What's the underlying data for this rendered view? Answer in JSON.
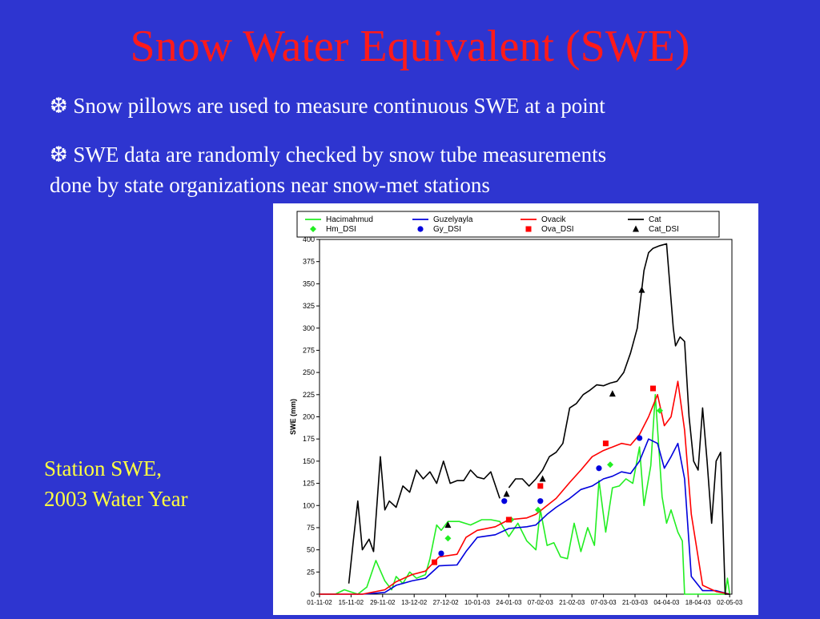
{
  "slide": {
    "title": "Snow Water Equivalent (SWE)",
    "bullet_1": "Snow pillows are used to measure continuous SWE at a point",
    "bullet_2_line_1": "SWE data are randomly checked by snow tube measurements",
    "bullet_2_line_2": "done by state organizations near snow-met stations",
    "bullet_icon": "snowflake-icon",
    "side_caption_line_1": "Station SWE,",
    "side_caption_line_2": "2003 Water Year",
    "colors": {
      "background": "#2e35d0",
      "title": "#ff1a1a",
      "bullet_text": "#ffffff",
      "side_caption": "#ffff40"
    }
  },
  "chart_data": {
    "type": "line",
    "title": "",
    "xlabel": "",
    "ylabel": "SWE (mm)",
    "ylim": [
      0,
      400
    ],
    "yticks": [
      0,
      25,
      50,
      75,
      100,
      125,
      150,
      175,
      200,
      225,
      250,
      275,
      300,
      325,
      350,
      375,
      400
    ],
    "xlim": [
      "2002-11-01",
      "2003-05-03"
    ],
    "xtick_labels": [
      "01-11-02",
      "15-11-02",
      "29-11-02",
      "13-12-02",
      "27-12-02",
      "10-01-03",
      "24-01-03",
      "07-02-03",
      "21-02-03",
      "07-03-03",
      "21-03-03",
      "04-04-03",
      "18-04-03",
      "02-05-03"
    ],
    "xtick_dates": [
      "2002-11-01",
      "2002-11-15",
      "2002-11-29",
      "2002-12-13",
      "2002-12-27",
      "2003-01-10",
      "2003-01-24",
      "2003-02-07",
      "2003-02-21",
      "2003-03-07",
      "2003-03-21",
      "2003-04-04",
      "2003-04-18",
      "2003-05-02"
    ],
    "grid": false,
    "legend_position": "top",
    "series": [
      {
        "name": "Hacimahmud",
        "color": "#22ee22",
        "x": [
          "2002-11-01",
          "2002-11-08",
          "2002-11-12",
          "2002-11-18",
          "2002-11-22",
          "2002-11-26",
          "2002-11-30",
          "2002-12-03",
          "2002-12-05",
          "2002-12-08",
          "2002-12-11",
          "2002-12-14",
          "2002-12-18",
          "2002-12-20",
          "2002-12-23",
          "2002-12-25",
          "2002-12-28",
          "2003-01-02",
          "2003-01-07",
          "2003-01-12",
          "2003-01-16",
          "2003-01-20",
          "2003-01-24",
          "2003-01-28",
          "2003-02-01",
          "2003-02-05",
          "2003-02-07",
          "2003-02-10",
          "2003-02-13",
          "2003-02-16",
          "2003-02-19",
          "2003-02-22",
          "2003-02-25",
          "2003-02-28",
          "2003-03-03",
          "2003-03-05",
          "2003-03-08",
          "2003-03-11",
          "2003-03-14",
          "2003-03-17",
          "2003-03-20",
          "2003-03-23",
          "2003-03-25",
          "2003-03-28",
          "2003-03-30",
          "2003-04-02",
          "2003-04-04",
          "2003-04-06",
          "2003-04-09",
          "2003-04-11",
          "2003-04-12",
          "2003-04-30",
          "2003-05-01",
          "2003-05-02"
        ],
        "y": [
          0,
          0,
          5,
          0,
          8,
          38,
          15,
          5,
          20,
          12,
          25,
          18,
          22,
          40,
          78,
          72,
          82,
          82,
          78,
          84,
          84,
          82,
          65,
          80,
          60,
          50,
          95,
          55,
          58,
          42,
          40,
          80,
          48,
          75,
          55,
          128,
          70,
          120,
          122,
          130,
          125,
          166,
          100,
          145,
          225,
          110,
          80,
          95,
          70,
          60,
          0,
          0,
          18,
          0
        ]
      },
      {
        "name": "Guzelyayla",
        "color": "#0000dd",
        "x": [
          "2002-11-01",
          "2002-11-20",
          "2002-11-30",
          "2002-12-05",
          "2002-12-12",
          "2002-12-18",
          "2002-12-24",
          "2003-01-01",
          "2003-01-05",
          "2003-01-10",
          "2003-01-18",
          "2003-01-24",
          "2003-02-01",
          "2003-02-05",
          "2003-02-10",
          "2003-02-14",
          "2003-02-20",
          "2003-02-25",
          "2003-03-02",
          "2003-03-07",
          "2003-03-11",
          "2003-03-15",
          "2003-03-19",
          "2003-03-23",
          "2003-03-27",
          "2003-03-31",
          "2003-04-03",
          "2003-04-06",
          "2003-04-09",
          "2003-04-12",
          "2003-04-15",
          "2003-04-20",
          "2003-04-26",
          "2003-05-02"
        ],
        "y": [
          0,
          0,
          2,
          10,
          15,
          18,
          32,
          33,
          48,
          64,
          67,
          74,
          76,
          78,
          90,
          98,
          108,
          118,
          122,
          130,
          133,
          138,
          136,
          150,
          175,
          170,
          142,
          155,
          170,
          130,
          20,
          4,
          4,
          0
        ]
      },
      {
        "name": "Ovacik",
        "color": "#ff0000",
        "x": [
          "2002-11-01",
          "2002-11-20",
          "2002-11-30",
          "2002-12-05",
          "2002-12-12",
          "2002-12-18",
          "2002-12-24",
          "2003-01-01",
          "2003-01-05",
          "2003-01-10",
          "2003-01-18",
          "2003-01-24",
          "2003-02-01",
          "2003-02-05",
          "2003-02-10",
          "2003-02-14",
          "2003-02-20",
          "2003-02-25",
          "2003-03-02",
          "2003-03-07",
          "2003-03-11",
          "2003-03-15",
          "2003-03-19",
          "2003-03-23",
          "2003-03-27",
          "2003-03-31",
          "2003-04-03",
          "2003-04-06",
          "2003-04-09",
          "2003-04-12",
          "2003-04-15",
          "2003-04-20",
          "2003-04-26",
          "2003-05-02"
        ],
        "y": [
          0,
          0,
          5,
          14,
          22,
          26,
          42,
          45,
          64,
          72,
          76,
          84,
          86,
          90,
          100,
          108,
          126,
          140,
          155,
          162,
          166,
          170,
          168,
          180,
          200,
          225,
          190,
          200,
          240,
          185,
          90,
          10,
          3,
          0
        ]
      },
      {
        "name": "Cat",
        "color": "#000000",
        "x": [
          "2002-11-14",
          "2002-11-16",
          "2002-11-18",
          "2002-11-20",
          "2002-11-23",
          "2002-11-25",
          "2002-11-28",
          "2002-11-30",
          "2002-12-02",
          "2002-12-05",
          "2002-12-08",
          "2002-12-11",
          "2002-12-14",
          "2002-12-17",
          "2002-12-20",
          "2002-12-23",
          "2002-12-26",
          "2002-12-29",
          "2003-01-01",
          "2003-01-04",
          "2003-01-07",
          "2003-01-10",
          "2003-01-13",
          "2003-01-16",
          "2003-01-20",
          null,
          "2003-01-24",
          "2003-01-27",
          "2003-01-30",
          "2003-02-02",
          "2003-02-05",
          "2003-02-08",
          "2003-02-11",
          "2003-02-14",
          "2003-02-17",
          "2003-02-20",
          "2003-02-23",
          "2003-02-26",
          "2003-03-01",
          "2003-03-04",
          "2003-03-07",
          "2003-03-10",
          "2003-03-13",
          "2003-03-16",
          "2003-03-19",
          "2003-03-22",
          "2003-03-25",
          "2003-03-27",
          "2003-03-29",
          "2003-04-01",
          "2003-04-04",
          "2003-04-07",
          "2003-04-08",
          "2003-04-10",
          "2003-04-12",
          "2003-04-14",
          "2003-04-16",
          "2003-04-18",
          "2003-04-20",
          "2003-04-22",
          "2003-04-24",
          "2003-04-26",
          "2003-04-28",
          "2003-04-30",
          "2003-05-01",
          "2003-05-02"
        ],
        "y": [
          12,
          60,
          105,
          50,
          62,
          48,
          155,
          95,
          105,
          98,
          122,
          115,
          140,
          130,
          138,
          125,
          150,
          125,
          128,
          128,
          140,
          132,
          130,
          138,
          108,
          null,
          120,
          130,
          130,
          122,
          130,
          140,
          155,
          160,
          170,
          210,
          215,
          225,
          230,
          236,
          235,
          238,
          240,
          250,
          272,
          300,
          365,
          385,
          390,
          393,
          395,
          300,
          280,
          290,
          285,
          200,
          150,
          140,
          210,
          150,
          80,
          150,
          160,
          0,
          0,
          0
        ]
      }
    ],
    "markers": [
      {
        "name": "Hm_DSI",
        "color": "#22ee22",
        "shape": "diamond",
        "points": [
          {
            "x": "2002-12-28",
            "y": 63
          },
          {
            "x": "2003-01-25",
            "y": 84
          },
          {
            "x": "2003-02-06",
            "y": 95
          },
          {
            "x": "2003-03-10",
            "y": 146
          },
          {
            "x": "2003-04-01",
            "y": 207
          }
        ]
      },
      {
        "name": "Gy_DSI",
        "color": "#0000dd",
        "shape": "circle",
        "points": [
          {
            "x": "2002-12-25",
            "y": 46
          },
          {
            "x": "2003-01-22",
            "y": 105
          },
          {
            "x": "2003-02-07",
            "y": 105
          },
          {
            "x": "2003-03-05",
            "y": 142
          },
          {
            "x": "2003-03-23",
            "y": 176
          }
        ]
      },
      {
        "name": "Ova_DSI",
        "color": "#ff0000",
        "shape": "square",
        "points": [
          {
            "x": "2002-12-22",
            "y": 36
          },
          {
            "x": "2003-01-24",
            "y": 84
          },
          {
            "x": "2003-02-07",
            "y": 122
          },
          {
            "x": "2003-03-08",
            "y": 170
          },
          {
            "x": "2003-03-29",
            "y": 232
          }
        ]
      },
      {
        "name": "Cat_DSI",
        "color": "#000000",
        "shape": "triangle",
        "points": [
          {
            "x": "2002-12-28",
            "y": 78
          },
          {
            "x": "2003-01-23",
            "y": 113
          },
          {
            "x": "2003-02-08",
            "y": 130
          },
          {
            "x": "2003-03-11",
            "y": 226
          },
          {
            "x": "2003-03-24",
            "y": 343
          }
        ]
      }
    ]
  }
}
